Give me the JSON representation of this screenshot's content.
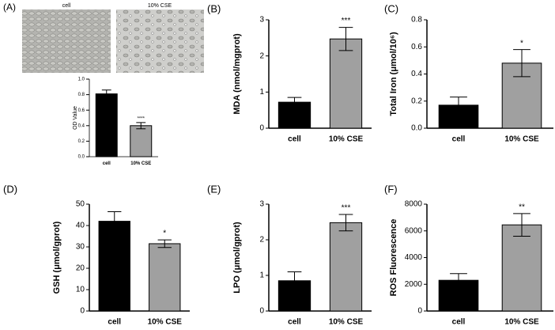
{
  "chart_data": [
    {
      "type": "bar",
      "panel_label": "(A)",
      "image_labels": [
        "cell",
        "10% CSE"
      ],
      "y_label": "OD Value",
      "categories": [
        "cell",
        "10% CSE"
      ],
      "values": [
        0.81,
        0.4
      ],
      "errors": [
        0.05,
        0.04
      ],
      "colors": [
        "#000000",
        "#a0a0a0"
      ],
      "annotation": "****",
      "ylim": [
        0,
        1.0
      ],
      "yticks": [
        {
          "value": 0,
          "label": "0.0"
        },
        0.2,
        0.4,
        0.6,
        0.8,
        {
          "value": 1.0,
          "label": "1.0"
        }
      ]
    },
    {
      "type": "bar",
      "panel_label": "(B)",
      "y_label": "MDA (nmol/mgprot)",
      "categories": [
        "cell",
        "10% CSE"
      ],
      "values": [
        0.72,
        2.47
      ],
      "errors": [
        0.13,
        0.32
      ],
      "colors": [
        "#000000",
        "#a0a0a0"
      ],
      "annotation": "***",
      "ylim": [
        0,
        3
      ],
      "yticks": [
        0,
        1,
        2,
        3
      ]
    },
    {
      "type": "bar",
      "panel_label": "(C)",
      "y_label": "Total Iron (μmol/10⁶)",
      "categories": [
        "cell",
        "10% CSE"
      ],
      "values": [
        0.17,
        0.48
      ],
      "errors": [
        0.06,
        0.1
      ],
      "colors": [
        "#000000",
        "#a0a0a0"
      ],
      "annotation": "*",
      "ylim": [
        0,
        0.8
      ],
      "yticks": [
        {
          "value": 0,
          "label": "0.0"
        },
        0.2,
        0.4,
        0.6,
        0.8
      ]
    },
    {
      "type": "bar",
      "panel_label": "(D)",
      "y_label": "GSH (μmol/gprot)",
      "categories": [
        "cell",
        "10% CSE"
      ],
      "values": [
        42,
        31.5
      ],
      "errors": [
        4.5,
        1.8
      ],
      "colors": [
        "#000000",
        "#a0a0a0"
      ],
      "annotation": "*",
      "ylim": [
        0,
        50
      ],
      "yticks": [
        0,
        10,
        20,
        30,
        40,
        50
      ]
    },
    {
      "type": "bar",
      "panel_label": "(E)",
      "y_label": "LPO (μmol/gprot)",
      "categories": [
        "cell",
        "10% CSE"
      ],
      "values": [
        0.85,
        2.48
      ],
      "errors": [
        0.25,
        0.23
      ],
      "colors": [
        "#000000",
        "#a0a0a0"
      ],
      "annotation": "***",
      "ylim": [
        0,
        3
      ],
      "yticks": [
        0,
        1,
        2,
        3
      ]
    },
    {
      "type": "bar",
      "panel_label": "(F)",
      "y_label": "ROS Fluorescence",
      "categories": [
        "cell",
        "10% CSE"
      ],
      "values": [
        2300,
        6450
      ],
      "errors": [
        500,
        850
      ],
      "colors": [
        "#000000",
        "#a0a0a0"
      ],
      "annotation": "**",
      "ylim": [
        0,
        8000
      ],
      "yticks": [
        0,
        2000,
        4000,
        6000,
        8000
      ]
    }
  ]
}
